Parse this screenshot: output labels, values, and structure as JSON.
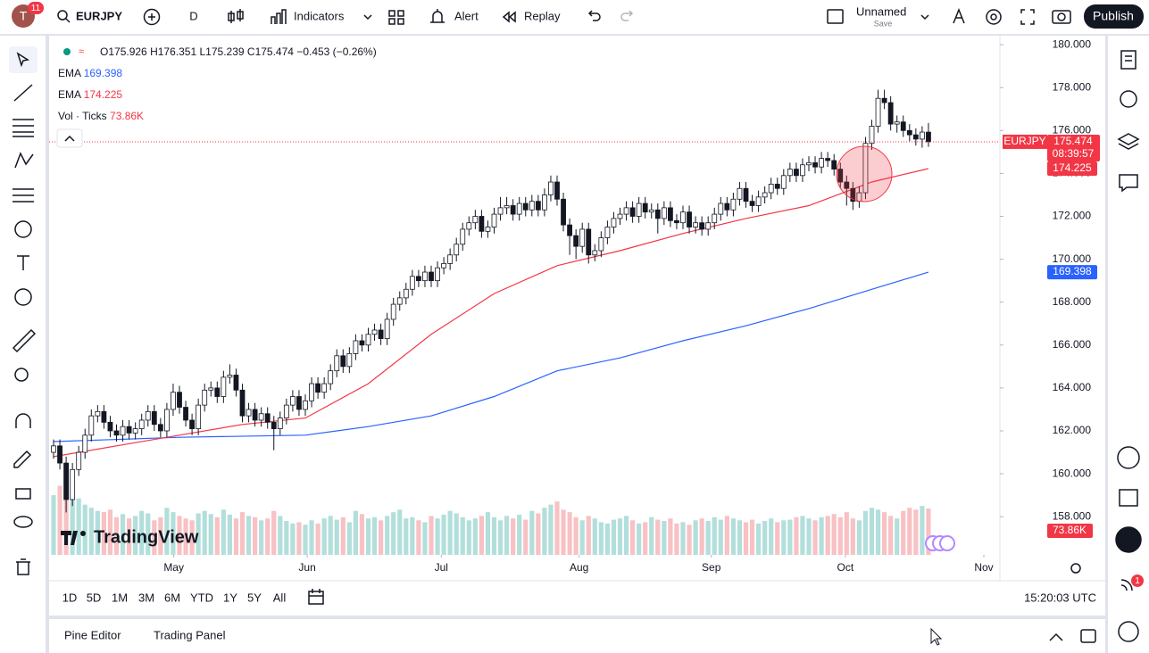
{
  "header": {
    "avatar": "T",
    "badge": "11",
    "symbol": "EURJPY",
    "interval": "D",
    "indicators": "Indicators",
    "alert": "Alert",
    "replay": "Replay",
    "layout_name": "Unnamed",
    "save": "Save",
    "publish": "Publish"
  },
  "chart_data": {
    "type": "candlestick",
    "symbol_tag": "EURJPY",
    "countdown": "08:39:57",
    "ohlc_labels": [
      "O",
      "H",
      "L",
      "C"
    ],
    "change": "−0.453 (−0.26%)",
    "up_color": "#ffffff",
    "down_color": "#131722",
    "wick_color": "#131722",
    "open": [
      161.0,
      161.3,
      160.5,
      158.8,
      160.2,
      161.0,
      161.8,
      162.7,
      162.9,
      162.4,
      162.0,
      161.8,
      162.2,
      161.9,
      162.1,
      162.5,
      162.9,
      162.3,
      162.0,
      163.0,
      163.8,
      163.1,
      162.5,
      162.1,
      163.2,
      163.9,
      164.0,
      163.6,
      164.5,
      164.6,
      163.9,
      162.7,
      163.0,
      162.5,
      162.8,
      162.4,
      162.1,
      162.6,
      163.2,
      163.6,
      163.0,
      163.4,
      164.2,
      163.8,
      164.2,
      164.8,
      165.5,
      165.0,
      165.6,
      166.2,
      166.0,
      166.5,
      166.7,
      166.3,
      167.2,
      167.9,
      168.2,
      168.6,
      169.2,
      169.0,
      169.4,
      169.0,
      169.6,
      169.8,
      170.2,
      170.7,
      171.4,
      171.7,
      172.0,
      171.3,
      171.5,
      172.1,
      172.4,
      172.5,
      172.1,
      172.6,
      172.3,
      172.7,
      172.3,
      173.0,
      173.6,
      172.8,
      171.6,
      171.1,
      170.6,
      171.4,
      170.2,
      170.4,
      171.0,
      171.5,
      171.9,
      172.1,
      172.4,
      172.0,
      172.6,
      172.2,
      172.3,
      171.9,
      172.4,
      171.8,
      171.7,
      172.2,
      171.5,
      171.7,
      171.4,
      171.7,
      172.1,
      172.6,
      172.3,
      172.8,
      173.3,
      172.7,
      172.5,
      172.9,
      173.1,
      173.5,
      173.3,
      173.9,
      174.2,
      173.9,
      174.4,
      174.5,
      174.3,
      174.7,
      174.6,
      174.2,
      173.6,
      173.3,
      172.7,
      173.1,
      175.4,
      176.2,
      177.5,
      177.3,
      176.3,
      176.4,
      176.0,
      175.8,
      175.6,
      175.926
    ],
    "high": [
      161.6,
      161.6,
      160.8,
      160.5,
      161.3,
      162.1,
      163.0,
      163.2,
      163.2,
      162.7,
      162.3,
      162.5,
      162.5,
      162.4,
      162.8,
      163.2,
      163.2,
      162.6,
      163.3,
      164.2,
      164.1,
      163.4,
      162.8,
      163.5,
      164.2,
      164.3,
      164.3,
      164.8,
      165.1,
      164.9,
      164.2,
      163.3,
      163.3,
      163.1,
      163.1,
      162.7,
      162.9,
      163.5,
      163.9,
      163.9,
      163.7,
      164.5,
      164.5,
      164.5,
      165.1,
      165.8,
      165.8,
      165.9,
      166.5,
      166.5,
      166.8,
      167.0,
      167.0,
      167.5,
      168.2,
      168.5,
      168.9,
      169.5,
      169.5,
      169.7,
      169.7,
      169.9,
      170.1,
      170.5,
      171.0,
      171.7,
      172.0,
      172.3,
      172.3,
      171.8,
      172.4,
      172.9,
      172.9,
      172.8,
      172.9,
      172.9,
      173.0,
      173.0,
      173.3,
      173.9,
      173.9,
      173.1,
      171.9,
      171.4,
      171.7,
      171.7,
      170.7,
      171.3,
      171.8,
      172.2,
      172.4,
      172.7,
      172.7,
      172.9,
      172.9,
      172.6,
      172.6,
      172.7,
      172.7,
      172.1,
      172.5,
      172.5,
      172.0,
      172.0,
      172.0,
      172.4,
      172.9,
      172.9,
      173.1,
      173.6,
      173.6,
      173.0,
      173.2,
      173.4,
      173.8,
      173.8,
      174.2,
      174.5,
      174.5,
      174.7,
      174.8,
      174.8,
      175.0,
      175.0,
      174.9,
      174.5,
      173.9,
      173.6,
      173.4,
      175.7,
      176.5,
      177.9,
      177.9,
      177.6,
      176.7,
      176.7,
      176.3,
      176.1,
      176.2,
      176.351
    ],
    "low": [
      160.7,
      160.2,
      158.2,
      158.5,
      159.9,
      160.7,
      161.5,
      162.4,
      162.1,
      161.7,
      161.5,
      161.5,
      161.6,
      161.6,
      161.8,
      162.2,
      162.0,
      161.7,
      161.7,
      162.7,
      162.8,
      162.2,
      161.8,
      161.8,
      162.9,
      163.6,
      163.3,
      163.3,
      164.2,
      163.6,
      162.4,
      162.4,
      162.2,
      162.2,
      162.1,
      161.1,
      161.8,
      162.3,
      162.9,
      162.7,
      162.7,
      163.1,
      163.5,
      163.5,
      163.9,
      164.5,
      164.7,
      164.7,
      165.3,
      165.7,
      165.7,
      166.2,
      166.0,
      166.0,
      166.9,
      167.6,
      167.9,
      168.3,
      168.7,
      168.7,
      168.7,
      168.7,
      169.3,
      169.5,
      169.9,
      170.4,
      171.1,
      171.4,
      171.0,
      171.0,
      171.2,
      171.8,
      172.1,
      171.8,
      171.8,
      172.0,
      172.0,
      172.0,
      172.0,
      172.7,
      172.5,
      171.3,
      170.2,
      170.0,
      170.3,
      169.8,
      169.9,
      170.1,
      170.7,
      171.2,
      171.6,
      171.8,
      171.7,
      171.7,
      171.9,
      171.9,
      171.2,
      171.6,
      171.5,
      171.4,
      171.4,
      171.2,
      171.2,
      171.1,
      171.1,
      171.4,
      171.8,
      172.0,
      172.0,
      172.5,
      172.4,
      172.2,
      172.2,
      172.6,
      172.8,
      173.0,
      173.0,
      173.6,
      173.6,
      173.6,
      174.1,
      174.0,
      174.0,
      174.3,
      173.9,
      173.3,
      172.5,
      172.3,
      172.4,
      172.8,
      175.1,
      175.9,
      177.0,
      176.0,
      175.9,
      175.7,
      175.5,
      175.3,
      175.2,
      175.239
    ],
    "close": [
      161.3,
      160.5,
      158.8,
      160.2,
      161.0,
      161.8,
      162.7,
      162.9,
      162.4,
      162.0,
      161.8,
      162.2,
      161.9,
      162.1,
      162.5,
      162.9,
      162.3,
      162.0,
      163.0,
      163.8,
      163.1,
      162.5,
      162.1,
      163.2,
      163.9,
      164.0,
      163.6,
      164.5,
      164.6,
      163.9,
      162.7,
      163.0,
      162.5,
      162.8,
      162.4,
      162.1,
      162.6,
      163.2,
      163.6,
      163.0,
      163.4,
      164.2,
      163.8,
      164.2,
      164.8,
      165.5,
      165.0,
      165.6,
      166.2,
      166.0,
      166.5,
      166.7,
      166.3,
      167.2,
      167.9,
      168.2,
      168.6,
      169.2,
      169.0,
      169.4,
      169.0,
      169.6,
      169.8,
      170.2,
      170.7,
      171.4,
      171.7,
      172.0,
      171.3,
      171.5,
      172.1,
      172.4,
      172.5,
      172.1,
      172.6,
      172.3,
      172.7,
      172.3,
      173.0,
      173.6,
      172.8,
      171.6,
      171.1,
      170.6,
      171.4,
      170.2,
      170.4,
      171.0,
      171.5,
      171.9,
      172.1,
      172.4,
      172.0,
      172.6,
      172.2,
      172.3,
      171.9,
      172.4,
      171.8,
      171.7,
      172.2,
      171.5,
      171.7,
      171.4,
      171.7,
      172.1,
      172.6,
      172.3,
      172.8,
      173.3,
      172.7,
      172.5,
      172.9,
      173.1,
      173.5,
      173.3,
      173.9,
      174.2,
      173.9,
      174.4,
      174.5,
      174.3,
      174.7,
      174.6,
      174.2,
      173.6,
      173.3,
      172.7,
      173.1,
      175.4,
      176.2,
      177.5,
      177.3,
      176.3,
      176.4,
      176.0,
      175.8,
      175.6,
      175.926,
      175.474
    ],
    "x_labels": [
      {
        "value": 19.1,
        "label": "May"
      },
      {
        "value": 40.3,
        "label": "Jun"
      },
      {
        "value": 61.6,
        "label": "Jul"
      },
      {
        "value": 83.5,
        "label": "Aug"
      },
      {
        "value": 104.5,
        "label": "Sep"
      },
      {
        "value": 125.8,
        "label": "Oct"
      },
      {
        "value": 147.8,
        "label": "Nov"
      }
    ],
    "ylim": [
      156.22,
      180.42
    ],
    "yticks": [
      {
        "value": 180,
        "label": "180.000"
      },
      {
        "value": 178,
        "label": "178.000"
      },
      {
        "value": 176,
        "label": "176.000"
      },
      {
        "value": 174,
        "label": "174.000"
      },
      {
        "value": 172,
        "label": "172.000"
      },
      {
        "value": 170,
        "label": "170.000"
      },
      {
        "value": 168,
        "label": "168.000"
      },
      {
        "value": 166,
        "label": "166.000"
      },
      {
        "value": 164,
        "label": "164.000"
      },
      {
        "value": 162,
        "label": "162.000"
      },
      {
        "value": 160,
        "label": "160.000"
      },
      {
        "value": 158,
        "label": "158.000"
      }
    ],
    "series": [
      {
        "name": "EMA",
        "color": "#2962ff",
        "x": [
          0,
          20,
          40,
          50,
          60,
          70,
          80,
          90,
          100,
          110,
          120,
          130,
          139
        ],
        "values": [
          161.5,
          161.7,
          161.8,
          162.2,
          162.7,
          163.6,
          164.8,
          165.4,
          166.2,
          166.9,
          167.7,
          168.6,
          169.398
        ]
      },
      {
        "name": "EMA",
        "color": "#f23645",
        "x": [
          0,
          10,
          20,
          30,
          40,
          50,
          60,
          70,
          80,
          90,
          100,
          110,
          120,
          130,
          139
        ],
        "values": [
          160.8,
          161.3,
          161.8,
          162.3,
          162.6,
          164.2,
          166.5,
          168.4,
          169.7,
          170.4,
          171.2,
          171.9,
          172.5,
          173.6,
          174.225
        ]
      }
    ],
    "volume": {
      "name": "Vol · Ticks",
      "up_color": "#b2dfdb",
      "down_color": "#f8c1c4",
      "last_label": "73.86K",
      "values": [
        95,
        110,
        113,
        105,
        90,
        80,
        75,
        70,
        68,
        72,
        60,
        65,
        58,
        62,
        70,
        66,
        55,
        60,
        75,
        68,
        62,
        58,
        55,
        66,
        70,
        65,
        60,
        72,
        64,
        58,
        68,
        62,
        60,
        55,
        58,
        70,
        62,
        54,
        50,
        52,
        48,
        55,
        50,
        58,
        62,
        56,
        60,
        52,
        70,
        65,
        58,
        60,
        55,
        62,
        68,
        72,
        58,
        60,
        55,
        52,
        62,
        58,
        64,
        70,
        66,
        60,
        55,
        58,
        62,
        68,
        60,
        55,
        62,
        58,
        64,
        56,
        70,
        66,
        75,
        80,
        85,
        72,
        68,
        60,
        55,
        62,
        58,
        52,
        50,
        56,
        58,
        62,
        55,
        50,
        52,
        60,
        56,
        54,
        58,
        50,
        52,
        48,
        55,
        58,
        54,
        60,
        56,
        62,
        58,
        55,
        52,
        56,
        50,
        54,
        58,
        52,
        55,
        56,
        60,
        62,
        58,
        55,
        60,
        62,
        65,
        60,
        68,
        58,
        55,
        70,
        75,
        72,
        68,
        62,
        58,
        70,
        75,
        72,
        78,
        73.86
      ]
    },
    "watermark": "TradingView"
  },
  "footer": {
    "ranges": [
      "1D",
      "5D",
      "1M",
      "3M",
      "6M",
      "YTD",
      "1Y",
      "5Y",
      "All"
    ],
    "clock": "15:20:03 UTC",
    "tabs": [
      "Pine Editor",
      "Trading Panel"
    ]
  },
  "sidebar": {
    "badge": "1"
  }
}
